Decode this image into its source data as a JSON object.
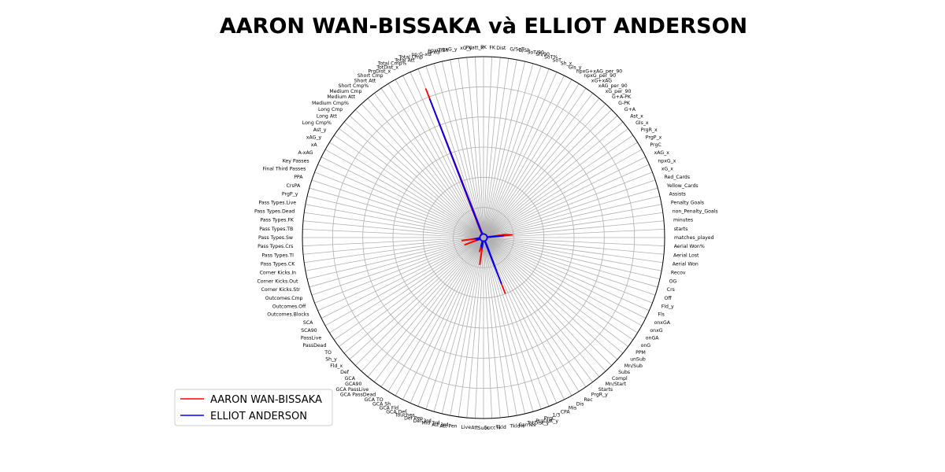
{
  "chart_data": {
    "type": "radar",
    "title": "AARON WAN-BISSAKA và ELLIOT ANDERSON",
    "grid": true,
    "legend_position": "lower-left",
    "categories": [
      "matches_played",
      "starts",
      "minutes",
      "non_Penalty_Goals",
      "Penalty Goals",
      "Assists",
      "Yellow_Cards",
      "Red_Cards",
      "xG_x",
      "npxG_x",
      "xAG_x",
      "PrgC",
      "PrgP_x",
      "PrgR_x",
      "Gls_x",
      "Ast_x",
      "G+A",
      "G-PK",
      "G+A-PK",
      "xG_per_90",
      "xAG_per_90",
      "xG+xAG",
      "npxG_per_90",
      "npxG+xAG_per_90",
      "Gls_y",
      "Sh_x",
      "SoT",
      "SoT%",
      "Sh/90",
      "SoT/90",
      "G/Sh",
      "G/SoT",
      "Dist",
      "FK",
      "PK",
      "PKatt_x",
      "xG_y",
      "npxG_y",
      "npxG/Sh",
      "G-xG",
      "np:G-xG",
      "Total Cmp",
      "Total Att",
      "Total Cmp%",
      "TotDist_x",
      "PrgDist_x",
      "Short Cmp",
      "Short Att",
      "Short Cmp%",
      "Medium Cmp",
      "Medium Att",
      "Medium Cmp%",
      "Long Cmp",
      "Long Att",
      "Long Cmp%",
      "Ast_y",
      "xAG_y",
      "xA",
      "A-xAG",
      "Key Passes",
      "Final Third Passes",
      "PPA",
      "CrsPA",
      "PrgP_y",
      "Pass Types.Live",
      "Pass Types.Dead",
      "Pass Types.FK",
      "Pass Types.TB",
      "Pass Types.Sw",
      "Pass Types.Crs",
      "Pass Types.TI",
      "Pass Types.CK",
      "Corner Kicks.In",
      "Corner Kicks.Out",
      "Corner Kicks.Str",
      "Outcomes.Cmp",
      "Outcomes.Off",
      "Outcomes.Blocks",
      "SCA",
      "SCA90",
      "PassLive",
      "PassDead",
      "TO",
      "Sh_y",
      "Fld_x",
      "Def",
      "GCA",
      "GCA90",
      "GCA PassLive",
      "GCA PassDead",
      "GCA TO",
      "GCA Sh",
      "GCA Fld",
      "GCA Def",
      "Touches",
      "Def Pen",
      "Def 3rd",
      "Mid 3rd",
      "Att 3rd",
      "Att Pen",
      "Live",
      "Att",
      "Succ",
      "Succ%",
      "Tkld",
      "Tkld%",
      "Carries",
      "TotDist_y",
      "PrgDist_y",
      "PrgC",
      "1/3",
      "CPA",
      "Mis",
      "Dis",
      "Rec",
      "PrgR_y",
      "Starts",
      "Mn/Start",
      "Compl",
      "Subs",
      "Mn/Sub",
      "unSub",
      "PPM",
      "onG",
      "onGA",
      "onxG",
      "onxGA",
      "Fls",
      "Fld_y",
      "Off",
      "Crs",
      "OG",
      "Recov",
      "Aerial Won",
      "Aerial Lost",
      "Aerial Won%"
    ],
    "rlim": [
      0,
      1
    ],
    "series": [
      {
        "name": "AARON WAN-BISSAKA",
        "color": "#ff0000",
        "values": [
          0.02,
          0.02,
          0.16,
          0.12,
          0.02,
          0.02,
          0.02,
          0.02,
          0.02,
          0.02,
          0.02,
          0.02,
          0.02,
          0.02,
          0.02,
          0.02,
          0.02,
          0.02,
          0.02,
          0.02,
          0.02,
          0.02,
          0.02,
          0.02,
          0.02,
          0.02,
          0.02,
          0.02,
          0.02,
          0.02,
          0.02,
          0.02,
          0.02,
          0.02,
          0.02,
          0.02,
          0.02,
          0.02,
          0.02,
          0.03,
          0.02,
          0.05,
          0.88,
          0.06,
          0.02,
          0.02,
          0.02,
          0.02,
          0.02,
          0.02,
          0.02,
          0.02,
          0.02,
          0.02,
          0.02,
          0.02,
          0.02,
          0.02,
          0.02,
          0.02,
          0.02,
          0.02,
          0.02,
          0.02,
          0.02,
          0.02,
          0.02,
          0.02,
          0.02,
          0.02,
          0.02,
          0.12,
          0.02,
          0.02,
          0.02,
          0.02,
          0.11,
          0.02,
          0.02,
          0.02,
          0.02,
          0.02,
          0.02,
          0.02,
          0.02,
          0.02,
          0.02,
          0.02,
          0.02,
          0.02,
          0.02,
          0.02,
          0.02,
          0.02,
          0.02,
          0.02,
          0.08,
          0.02,
          0.02,
          0.15,
          0.02,
          0.02,
          0.02,
          0.02,
          0.02,
          0.02,
          0.02,
          0.02,
          0.02,
          0.02,
          0.33,
          0.02,
          0.02,
          0.02,
          0.02,
          0.02,
          0.02,
          0.02,
          0.02,
          0.02,
          0.02,
          0.02,
          0.02,
          0.02,
          0.02,
          0.02,
          0.02,
          0.02,
          0.02,
          0.02,
          0.02,
          0.02,
          0.02,
          0.02,
          0.02,
          0.02
        ]
      },
      {
        "name": "ELLIOT ANDERSON",
        "color": "#0000ff",
        "values": [
          0.02,
          0.02,
          0.11,
          0.02,
          0.02,
          0.02,
          0.02,
          0.02,
          0.02,
          0.02,
          0.02,
          0.02,
          0.02,
          0.02,
          0.02,
          0.02,
          0.02,
          0.02,
          0.02,
          0.02,
          0.02,
          0.02,
          0.02,
          0.02,
          0.02,
          0.02,
          0.02,
          0.02,
          0.02,
          0.02,
          0.02,
          0.02,
          0.02,
          0.02,
          0.02,
          0.02,
          0.02,
          0.02,
          0.02,
          0.02,
          0.02,
          0.02,
          0.82,
          0.02,
          0.02,
          0.02,
          0.02,
          0.02,
          0.02,
          0.02,
          0.02,
          0.02,
          0.02,
          0.02,
          0.02,
          0.02,
          0.02,
          0.02,
          0.02,
          0.02,
          0.02,
          0.02,
          0.02,
          0.02,
          0.02,
          0.02,
          0.02,
          0.02,
          0.02,
          0.02,
          0.02,
          0.05,
          0.02,
          0.02,
          0.02,
          0.02,
          0.04,
          0.02,
          0.02,
          0.02,
          0.02,
          0.02,
          0.02,
          0.02,
          0.02,
          0.02,
          0.02,
          0.02,
          0.02,
          0.02,
          0.02,
          0.02,
          0.02,
          0.02,
          0.02,
          0.02,
          0.05,
          0.02,
          0.02,
          0.06,
          0.02,
          0.02,
          0.02,
          0.02,
          0.02,
          0.02,
          0.02,
          0.02,
          0.02,
          0.02,
          0.27,
          0.05,
          0.02,
          0.02,
          0.02,
          0.02,
          0.02,
          0.02,
          0.02,
          0.02,
          0.02,
          0.02,
          0.02,
          0.02,
          0.02,
          0.02,
          0.02,
          0.02,
          0.02,
          0.02,
          0.02,
          0.02,
          0.02,
          0.02,
          0.02,
          0.02
        ]
      }
    ]
  }
}
